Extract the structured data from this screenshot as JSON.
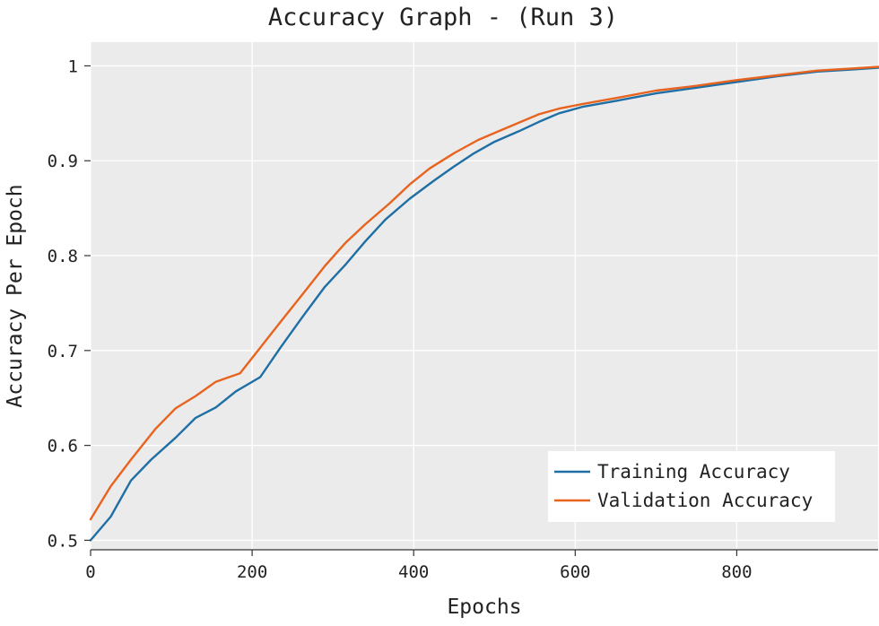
{
  "chart_data": {
    "type": "line",
    "title": "Accuracy Graph - (Run 3)",
    "xlabel": "Epochs",
    "ylabel": "Accuracy Per Epoch",
    "xlim": [
      0,
      975
    ],
    "ylim": [
      0.49,
      1.025
    ],
    "x_ticks": [
      0,
      200,
      400,
      600,
      800
    ],
    "y_ticks": [
      0.5,
      0.6,
      0.7,
      0.8,
      0.9,
      1
    ],
    "x_tick_labels": [
      "0",
      "200",
      "400",
      "600",
      "800"
    ],
    "y_tick_labels": [
      "0.5",
      "0.6",
      "0.7",
      "0.8",
      "0.9",
      "1"
    ],
    "grid": true,
    "legend_position": "bottom-right",
    "background_color": "#ebebeb",
    "grid_color": "#ffffff",
    "series": [
      {
        "name": "Training Accuracy",
        "color": "#1f6fa5",
        "x": [
          0,
          25,
          50,
          75,
          105,
          130,
          155,
          180,
          210,
          235,
          262,
          290,
          315,
          340,
          365,
          395,
          425,
          450,
          475,
          500,
          530,
          555,
          580,
          610,
          650,
          700,
          750,
          800,
          850,
          900,
          940,
          975
        ],
        "y": [
          0.5,
          0.525,
          0.563,
          0.585,
          0.608,
          0.629,
          0.64,
          0.657,
          0.672,
          0.703,
          0.735,
          0.767,
          0.79,
          0.815,
          0.838,
          0.86,
          0.879,
          0.894,
          0.908,
          0.92,
          0.931,
          0.941,
          0.95,
          0.957,
          0.963,
          0.971,
          0.977,
          0.983,
          0.989,
          0.994,
          0.996,
          0.998
        ]
      },
      {
        "name": "Validation Accuracy",
        "color": "#e8631d",
        "x": [
          0,
          25,
          50,
          80,
          105,
          130,
          155,
          185,
          210,
          235,
          265,
          290,
          315,
          340,
          370,
          395,
          420,
          450,
          480,
          505,
          530,
          555,
          580,
          610,
          650,
          700,
          750,
          800,
          850,
          900,
          940,
          975
        ],
        "y": [
          0.522,
          0.557,
          0.585,
          0.617,
          0.639,
          0.652,
          0.667,
          0.676,
          0.703,
          0.73,
          0.762,
          0.789,
          0.813,
          0.833,
          0.855,
          0.875,
          0.892,
          0.908,
          0.922,
          0.931,
          0.94,
          0.949,
          0.955,
          0.96,
          0.966,
          0.974,
          0.979,
          0.985,
          0.99,
          0.995,
          0.997,
          0.999
        ]
      }
    ]
  }
}
